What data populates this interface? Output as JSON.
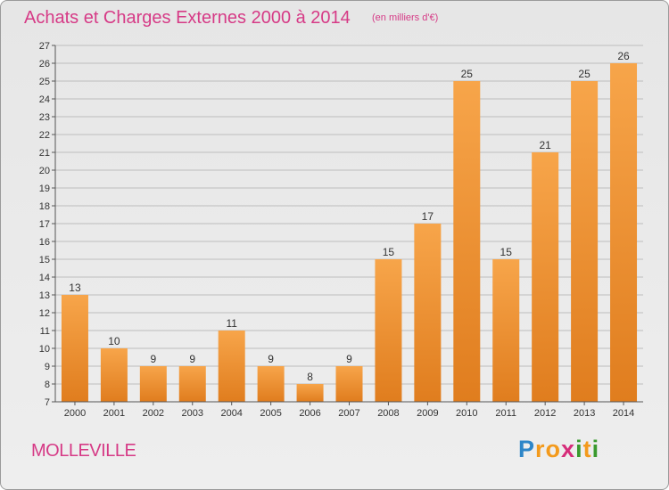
{
  "header": {
    "title": "Achats et Charges Externes 2000 à 2014",
    "unit": "(en milliers d'€)"
  },
  "footer": {
    "place": "MOLLEVILLE",
    "logo_letters": [
      "P",
      "r",
      "o",
      "x",
      "i",
      "t",
      "i"
    ]
  },
  "colors": {
    "title": "#d63a86",
    "bar_light": "#f7a54a",
    "bar_dark": "#e07d1e",
    "grid": "#bdbdbd",
    "logo_letters": [
      "#2e86c8",
      "#f39a1c",
      "#f39a1c",
      "#d62d7a",
      "#3a9a2e",
      "#f39a1c",
      "#3a9a2e"
    ]
  },
  "chart_data": {
    "type": "bar",
    "categories": [
      "2000",
      "2001",
      "2002",
      "2003",
      "2004",
      "2005",
      "2006",
      "2007",
      "2008",
      "2009",
      "2010",
      "2011",
      "2012",
      "2013",
      "2014"
    ],
    "values": [
      13,
      10,
      9,
      9,
      11,
      9,
      8,
      9,
      15,
      17,
      25,
      15,
      21,
      25,
      26
    ],
    "ylim": [
      7,
      27
    ],
    "yticks": [
      7,
      8,
      9,
      10,
      11,
      12,
      13,
      14,
      15,
      16,
      17,
      18,
      19,
      20,
      21,
      22,
      23,
      24,
      25,
      26,
      27
    ],
    "grid": true,
    "legend": "none"
  }
}
